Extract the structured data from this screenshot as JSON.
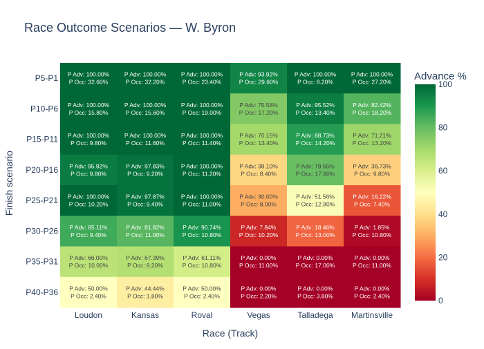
{
  "chart_data": {
    "type": "heatmap",
    "title": "Race Outcome Scenarios — W. Byron",
    "xlabel": "Race (Track)",
    "ylabel": "Finish scenario",
    "x": [
      "Loudon",
      "Kansas",
      "Roval",
      "Vegas",
      "Talladega",
      "Martinsville"
    ],
    "y": [
      "P5-P1",
      "P10-P6",
      "P15-P11",
      "P20-P16",
      "P25-P21",
      "P30-P26",
      "P35-P31",
      "P40-P36"
    ],
    "z": [
      [
        100.0,
        100.0,
        100.0,
        93.92,
        100.0,
        100.0
      ],
      [
        100.0,
        100.0,
        100.0,
        75.58,
        95.52,
        82.42
      ],
      [
        100.0,
        100.0,
        100.0,
        70.15,
        88.73,
        71.21
      ],
      [
        95.92,
        97.83,
        100.0,
        38.1,
        79.55,
        36.73
      ],
      [
        100.0,
        97.87,
        100.0,
        30.0,
        51.56,
        16.22
      ],
      [
        85.11,
        81.82,
        90.74,
        7.84,
        18.46,
        1.85
      ],
      [
        66.0,
        67.39,
        61.11,
        0.0,
        0.0,
        0.0
      ],
      [
        50.0,
        44.44,
        50.0,
        0.0,
        0.0,
        0.0
      ]
    ],
    "occ": [
      [
        32.6,
        32.2,
        23.4,
        29.6,
        8.2,
        27.2
      ],
      [
        15.8,
        15.6,
        19.0,
        17.2,
        13.4,
        18.2
      ],
      [
        9.8,
        11.6,
        11.4,
        13.4,
        14.2,
        13.2
      ],
      [
        9.8,
        9.2,
        11.2,
        8.4,
        17.6,
        9.8
      ],
      [
        10.2,
        9.4,
        11.0,
        8.0,
        12.8,
        7.4
      ],
      [
        9.4,
        11.0,
        10.8,
        10.2,
        13.0,
        10.8
      ],
      [
        10.0,
        9.2,
        10.8,
        11.0,
        17.0,
        11.0
      ],
      [
        2.4,
        1.8,
        2.4,
        2.2,
        3.8,
        2.4
      ]
    ],
    "cell_label_prefix_adv": "P Adv: ",
    "cell_label_prefix_occ": "P Occ: ",
    "colorscale": [
      "#a50026",
      "#d73027",
      "#f46d43",
      "#fdae61",
      "#fee08b",
      "#ffffbf",
      "#d9ef8b",
      "#a6d96a",
      "#66bd63",
      "#1a9850",
      "#006837"
    ],
    "zlim": [
      0,
      100
    ],
    "colorbar_title": "Advance %",
    "colorbar_ticks": [
      0,
      20,
      40,
      60,
      80,
      100
    ],
    "grid": false,
    "legend": "colorbar-right"
  }
}
